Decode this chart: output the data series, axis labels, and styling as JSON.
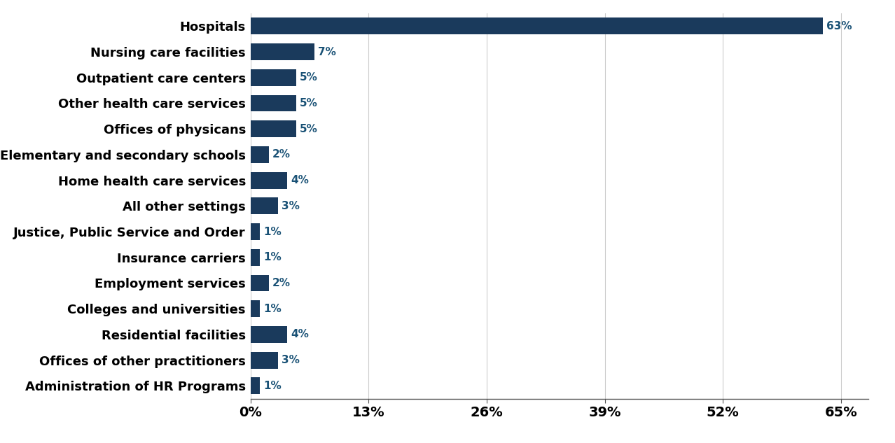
{
  "categories": [
    "Hospitals",
    "Nursing care facilities",
    "Outpatient care centers",
    "Other health care services",
    "Offices of physicans",
    "Elementary and secondary schools",
    "Home health care services",
    "All other settings",
    "Justice, Public Service and Order",
    "Insurance carriers",
    "Employment services",
    "Colleges and universities",
    "Residential facilities",
    "Offices of other practitioners",
    "Administration of HR Programs"
  ],
  "values": [
    63,
    7,
    5,
    5,
    5,
    2,
    4,
    3,
    1,
    1,
    2,
    1,
    4,
    3,
    1
  ],
  "bar_color": "#1a3a5c",
  "label_color": "#1a5276",
  "axis_label_color": "#000000",
  "background_color": "#ffffff",
  "xtick_labels": [
    "0%",
    "13%",
    "26%",
    "39%",
    "52%",
    "65%"
  ],
  "xtick_values": [
    0,
    13,
    26,
    39,
    52,
    65
  ],
  "xlim": [
    0,
    68
  ],
  "bar_height": 0.65,
  "label_fontsize": 13,
  "tick_fontsize": 14,
  "value_fontsize": 11
}
